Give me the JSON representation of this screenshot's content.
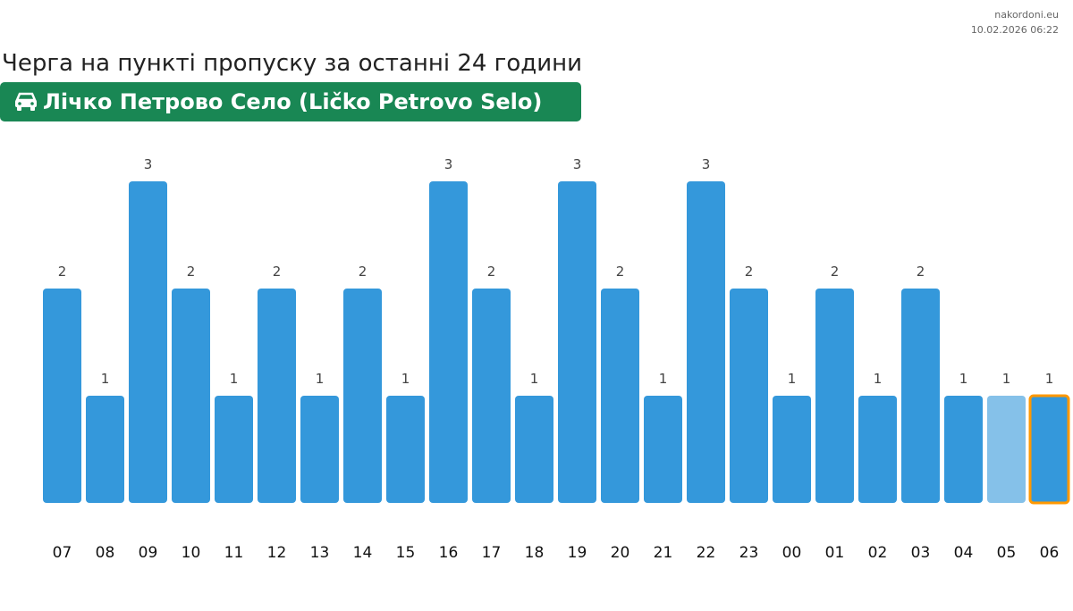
{
  "header": {
    "site": "nakordoni.eu",
    "timestamp": "10.02.2026 06:22",
    "title": "Черга на пункті пропуску за останні 24 години",
    "checkpoint": "Лічко Петрово Село (Ličko Petrovo Selo)",
    "checkpoint_icon": "car-icon",
    "badge_color": "#198754"
  },
  "chart_data": {
    "type": "bar",
    "title": "Черга на пункті пропуску за останні 24 години",
    "xlabel": "",
    "ylabel": "",
    "ylim": [
      0,
      3
    ],
    "grid": false,
    "categories": [
      "07",
      "08",
      "09",
      "10",
      "11",
      "12",
      "13",
      "14",
      "15",
      "16",
      "17",
      "18",
      "19",
      "20",
      "21",
      "22",
      "23",
      "00",
      "01",
      "02",
      "03",
      "04",
      "05",
      "06"
    ],
    "values": [
      2,
      1,
      3,
      2,
      1,
      2,
      1,
      2,
      1,
      3,
      2,
      1,
      3,
      2,
      1,
      3,
      2,
      1,
      2,
      1,
      2,
      1,
      1,
      1
    ],
    "bar_color": "#3498db",
    "faded_bar_index": 22,
    "faded_bar_color": "#85c1e9",
    "highlight_bar_index": 23,
    "highlight_border_color": "#ff9800"
  }
}
